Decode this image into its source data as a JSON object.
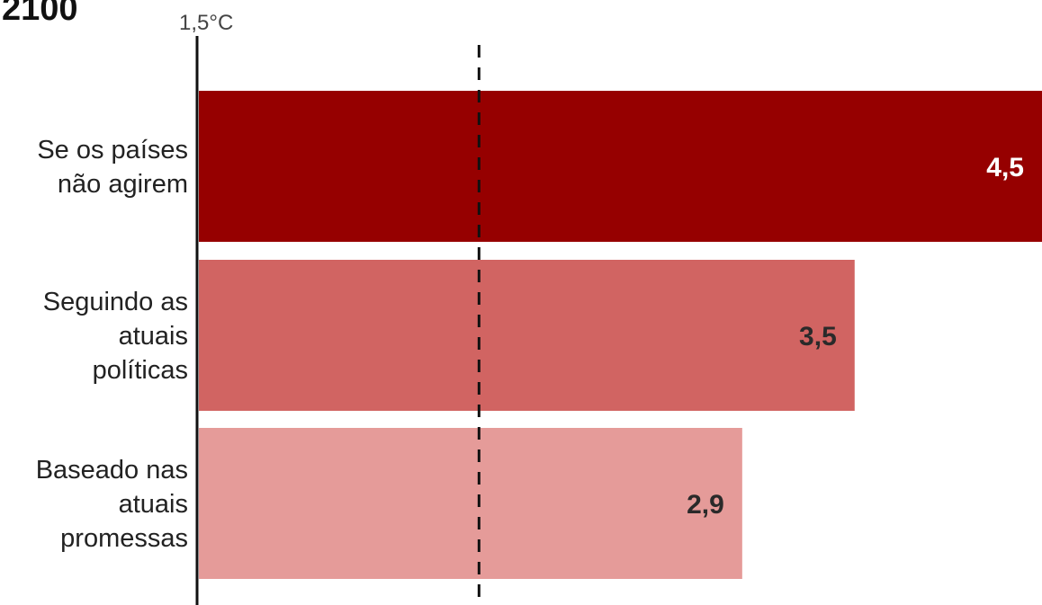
{
  "year_label": "2100",
  "chart_data": {
    "type": "bar",
    "orientation": "horizontal",
    "title": "2100",
    "reference_line": {
      "value": 1.5,
      "label": "1,5°C",
      "style": "dashed"
    },
    "categories": [
      "Se os países não agirem",
      "Seguindo as atuais políticas",
      "Baseado nas atuais promessas"
    ],
    "category_lines": [
      [
        "Se os países",
        "não agirem"
      ],
      [
        "Seguindo as",
        "atuais",
        "políticas"
      ],
      [
        "Baseado nas",
        "atuais",
        "promessas"
      ]
    ],
    "values": [
      4.5,
      3.5,
      2.9
    ],
    "value_labels": [
      "4,5",
      "3,5",
      "2,9"
    ],
    "bar_colors": [
      "#960000",
      "#d16462",
      "#e59b99"
    ],
    "value_label_colors": [
      "#ffffff",
      "#2a2a2a",
      "#2a2a2a"
    ],
    "xlim": [
      0,
      4.5
    ],
    "grid": false,
    "legend": "none"
  }
}
